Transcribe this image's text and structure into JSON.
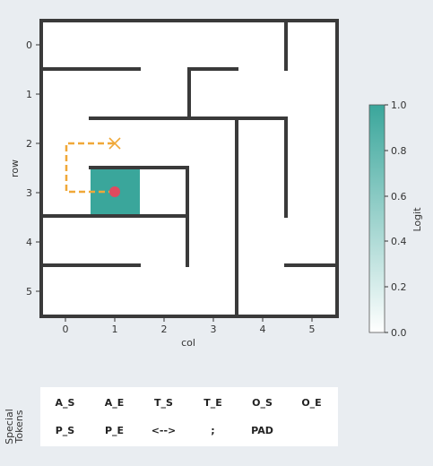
{
  "maze": {
    "rows": 6,
    "cols": 6,
    "x_axis_label": "col",
    "y_axis_label": "row",
    "x_ticks": [
      "0",
      "1",
      "2",
      "3",
      "4",
      "5"
    ],
    "y_ticks": [
      "0",
      "1",
      "2",
      "3",
      "4",
      "5"
    ],
    "highlighted_cell": {
      "row": 3,
      "col": 1,
      "logit": 1.0,
      "color": "#3aa69b"
    },
    "origin_marker": {
      "row": 3,
      "col": 1,
      "color": "#e04a5f",
      "shape": "circle"
    },
    "target_marker": {
      "row": 2,
      "col": 1,
      "color": "#f0a838",
      "shape": "x"
    },
    "path": {
      "color": "#f0a838",
      "style": "dashed",
      "cells": [
        [
          3,
          1
        ],
        [
          3,
          0
        ],
        [
          2,
          0
        ],
        [
          2,
          1
        ]
      ]
    }
  },
  "colorbar": {
    "label": "Logit",
    "ticks": [
      "0.0",
      "0.2",
      "0.4",
      "0.6",
      "0.8",
      "1.0"
    ],
    "min": 0.0,
    "max": 1.0,
    "color_low": "#ffffff",
    "color_high": "#3aa69b"
  },
  "tokens": {
    "section_label_line1": "Special",
    "section_label_line2": "Tokens",
    "row1": [
      "A_S",
      "A_E",
      "T_S",
      "T_E",
      "O_S",
      "O_E"
    ],
    "row2": [
      "P_S",
      "P_E",
      "<-->",
      ";",
      "PAD"
    ]
  }
}
